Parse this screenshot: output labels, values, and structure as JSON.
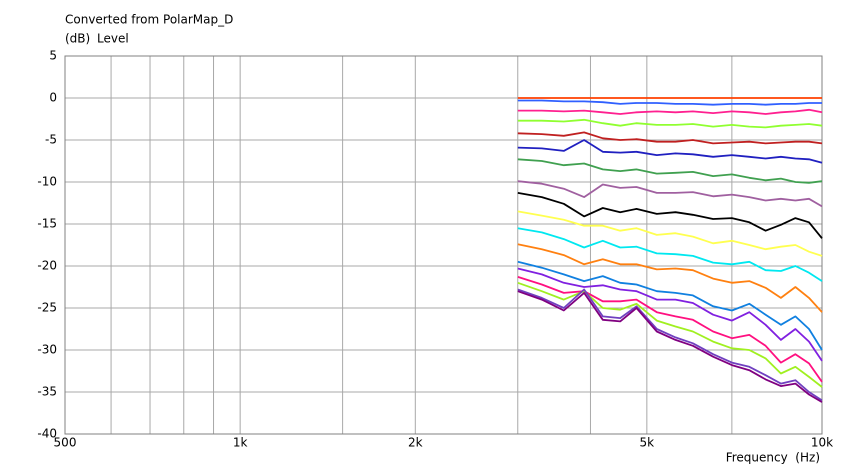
{
  "chart_data": {
    "type": "line",
    "title": "Converted from PolarMap_D",
    "y_unit": "(dB)",
    "y_label": "Level",
    "x_label": "Frequency  (Hz)",
    "x_scale": "log",
    "grid": true,
    "xlim": [
      500,
      10000
    ],
    "ylim": [
      -40,
      5
    ],
    "xticks": [
      500,
      {
        "value": 1000,
        "label": "1k"
      },
      {
        "value": 2000,
        "label": "2k"
      },
      {
        "value": 5000,
        "label": "5k"
      },
      {
        "value": 10000,
        "label": "10k"
      }
    ],
    "xminor": [
      600,
      700,
      800,
      900,
      1500,
      3000,
      4000,
      7000
    ],
    "yticks": [
      5,
      0,
      -5,
      -10,
      -15,
      -20,
      -25,
      -30,
      -35,
      -40
    ],
    "x": [
      3000,
      3300,
      3600,
      3900,
      4200,
      4500,
      4800,
      5200,
      5600,
      6000,
      6500,
      7000,
      7500,
      8000,
      8500,
      9000,
      9500,
      10000
    ],
    "series": [
      {
        "color": "#ff4000",
        "values": [
          0,
          0,
          0,
          0,
          0,
          0,
          0,
          0,
          0,
          0,
          0,
          0,
          0,
          0,
          0,
          0,
          0,
          0
        ]
      },
      {
        "color": "#3060ff",
        "values": [
          -0.3,
          -0.3,
          -0.4,
          -0.4,
          -0.5,
          -0.7,
          -0.6,
          -0.6,
          -0.7,
          -0.7,
          -0.8,
          -0.7,
          -0.7,
          -0.8,
          -0.7,
          -0.7,
          -0.6,
          -0.6
        ]
      },
      {
        "color": "#ff2090",
        "values": [
          -1.5,
          -1.5,
          -1.6,
          -1.5,
          -1.7,
          -1.9,
          -1.7,
          -1.6,
          -1.7,
          -1.6,
          -1.8,
          -1.6,
          -1.7,
          -1.9,
          -1.7,
          -1.6,
          -1.4,
          -1.7
        ]
      },
      {
        "color": "#90ff30",
        "values": [
          -2.7,
          -2.7,
          -2.8,
          -2.6,
          -3,
          -3.3,
          -3,
          -3.2,
          -3.2,
          -3.1,
          -3.4,
          -3.2,
          -3.4,
          -3.5,
          -3.3,
          -3.2,
          -3.1,
          -3.3
        ]
      },
      {
        "color": "#c02020",
        "values": [
          -4.2,
          -4.3,
          -4.5,
          -4.1,
          -4.8,
          -5,
          -4.9,
          -5.2,
          -5.2,
          -5,
          -5.4,
          -5.3,
          -5.2,
          -5.4,
          -5.3,
          -5.2,
          -5.2,
          -5.4
        ]
      },
      {
        "color": "#2020c0",
        "values": [
          -5.9,
          -6,
          -6.3,
          -5,
          -6.4,
          -6.5,
          -6.4,
          -6.8,
          -6.6,
          -6.7,
          -7,
          -6.8,
          -7,
          -7.2,
          -7,
          -7.2,
          -7.3,
          -7.7
        ]
      },
      {
        "color": "#40a050",
        "values": [
          -7.3,
          -7.5,
          -8,
          -7.8,
          -8.5,
          -8.7,
          -8.5,
          -9,
          -8.9,
          -8.8,
          -9.3,
          -9.1,
          -9.5,
          -9.8,
          -9.6,
          -10,
          -10.1,
          -9.9
        ]
      },
      {
        "color": "#a060a0",
        "values": [
          -9.9,
          -10.2,
          -10.8,
          -11.8,
          -10.3,
          -10.7,
          -10.6,
          -11.3,
          -11.3,
          -11.2,
          -11.7,
          -11.5,
          -11.8,
          -12.2,
          -12,
          -12.2,
          -12,
          -12.9
        ]
      },
      {
        "color": "#000000",
        "values": [
          -11.3,
          -11.8,
          -12.6,
          -14.1,
          -13.1,
          -13.6,
          -13.2,
          -13.8,
          -13.6,
          -13.9,
          -14.4,
          -14.3,
          -14.8,
          -15.8,
          -15.1,
          -14.3,
          -14.8,
          -16.7
        ]
      },
      {
        "color": "#ffff50",
        "values": [
          -13.5,
          -14,
          -14.5,
          -15.2,
          -15.2,
          -15.8,
          -15.5,
          -16.3,
          -16.1,
          -16.5,
          -17.3,
          -17,
          -17.5,
          -18,
          -17.7,
          -17.5,
          -18.3,
          -18.8
        ]
      },
      {
        "color": "#00e8f0",
        "values": [
          -15.5,
          -16,
          -16.8,
          -17.8,
          -17,
          -17.8,
          -17.7,
          -18.5,
          -18.6,
          -18.8,
          -19.6,
          -19.8,
          -19.5,
          -20.5,
          -20.6,
          -20,
          -20.8,
          -21.8
        ]
      },
      {
        "color": "#ff8010",
        "values": [
          -17.4,
          -18,
          -18.7,
          -19.8,
          -19.2,
          -19.8,
          -19.8,
          -20.4,
          -20.3,
          -20.5,
          -21.5,
          -22,
          -21.8,
          -22.6,
          -23.8,
          -22.5,
          -23.8,
          -25.5
        ]
      },
      {
        "color": "#1080e0",
        "values": [
          -19.5,
          -20.2,
          -21,
          -21.8,
          -21.2,
          -22,
          -22.2,
          -23,
          -23.2,
          -23.5,
          -24.8,
          -25.3,
          -24.5,
          -25.8,
          -27,
          -26,
          -27.5,
          -30
        ]
      },
      {
        "color": "#8020e0",
        "values": [
          -20.3,
          -21,
          -22,
          -22.5,
          -22.3,
          -22.8,
          -23,
          -24,
          -24,
          -24.4,
          -25.8,
          -26.5,
          -25.5,
          -27,
          -28.8,
          -27.5,
          -29,
          -31.3
        ]
      },
      {
        "color": "#ff1080",
        "values": [
          -21.3,
          -22.2,
          -23.2,
          -23,
          -24.2,
          -24.2,
          -24,
          -25.5,
          -26,
          -26.4,
          -27.8,
          -28.6,
          -28.2,
          -29.5,
          -31.5,
          -30.5,
          -31.6,
          -33.8
        ]
      },
      {
        "color": "#a0f020",
        "values": [
          -22,
          -23,
          -24,
          -23,
          -25,
          -25.2,
          -24.5,
          -26.5,
          -27.2,
          -27.8,
          -29,
          -29.8,
          -30,
          -31,
          -32.8,
          -32,
          -33.2,
          -34.4
        ]
      },
      {
        "color": "#7040c0",
        "values": [
          -22.8,
          -23.8,
          -25,
          -22.8,
          -26,
          -26.2,
          -24.8,
          -27.5,
          -28.5,
          -29.2,
          -30.5,
          -31.5,
          -32,
          -33,
          -34,
          -33.6,
          -35,
          -36
        ]
      },
      {
        "color": "#800080",
        "values": [
          -23,
          -24,
          -25.3,
          -23.2,
          -26.4,
          -26.6,
          -25,
          -27.8,
          -28.8,
          -29.5,
          -30.8,
          -31.8,
          -32.4,
          -33.5,
          -34.3,
          -34,
          -35.3,
          -36.2
        ]
      }
    ]
  }
}
